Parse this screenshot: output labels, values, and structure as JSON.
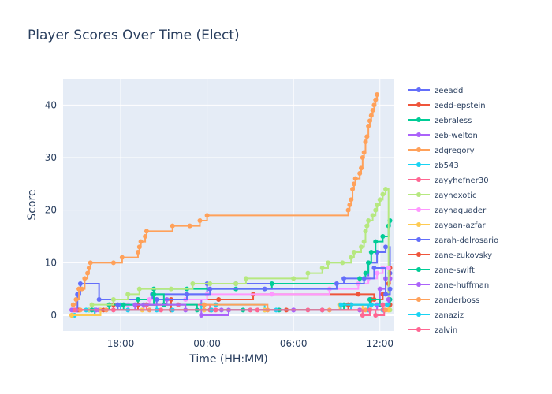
{
  "chart_data": {
    "type": "line",
    "title": "Player Scores Over Time (Elect)",
    "xlabel": "Time (HH:MM)",
    "ylabel": "Score",
    "x_tick_labels": [
      "18:00",
      "00:00",
      "06:00",
      "12:00"
    ],
    "x_tick_hours": [
      18,
      24,
      30,
      36
    ],
    "xlim_hours": [
      14.0,
      37.0
    ],
    "ylim": [
      -3,
      45
    ],
    "y_ticks": [
      0,
      10,
      20,
      30,
      40
    ],
    "step": "hv",
    "grid": true,
    "legend_position": "right",
    "series": [
      {
        "name": "zeeadd",
        "color": "#636efa",
        "points": [
          [
            14.7,
            1
          ],
          [
            15.0,
            4
          ],
          [
            15.2,
            6
          ],
          [
            16.5,
            3
          ],
          [
            19.2,
            3
          ],
          [
            20.2,
            4
          ],
          [
            24.0,
            6
          ],
          [
            26.0,
            6
          ],
          [
            33.5,
            7
          ],
          [
            35.2,
            10
          ],
          [
            35.8,
            12
          ],
          [
            36.4,
            13
          ],
          [
            36.7,
            8
          ]
        ]
      },
      {
        "name": "zedd-epstein",
        "color": "#EF553B",
        "points": [
          [
            14.6,
            0
          ],
          [
            16.2,
            1
          ],
          [
            17.5,
            2
          ],
          [
            19.8,
            2
          ],
          [
            21.5,
            3
          ],
          [
            24.8,
            3
          ],
          [
            27.2,
            4
          ],
          [
            34.5,
            4
          ],
          [
            35.6,
            3
          ],
          [
            36.2,
            4
          ],
          [
            36.6,
            6
          ],
          [
            36.7,
            9
          ]
        ]
      },
      {
        "name": "zebraless",
        "color": "#00cc96",
        "points": [
          [
            15.8,
            1
          ],
          [
            17.2,
            2
          ],
          [
            19.2,
            3
          ],
          [
            20.3,
            5
          ],
          [
            22.6,
            5
          ],
          [
            26.0,
            5
          ],
          [
            28.5,
            6
          ],
          [
            34.6,
            7
          ],
          [
            35.0,
            8
          ],
          [
            35.2,
            10
          ],
          [
            35.4,
            12
          ],
          [
            35.7,
            14
          ],
          [
            36.2,
            15
          ],
          [
            36.6,
            17
          ],
          [
            36.7,
            18
          ]
        ]
      },
      {
        "name": "zeb-welton",
        "color": "#ab63fa",
        "points": [
          [
            14.6,
            1
          ],
          [
            16.5,
            1
          ],
          [
            19.6,
            2
          ],
          [
            21.2,
            3
          ],
          [
            23.6,
            0
          ],
          [
            25.5,
            1
          ],
          [
            30.0,
            1
          ],
          [
            34.0,
            2
          ],
          [
            35.3,
            3
          ],
          [
            36.0,
            5
          ],
          [
            36.4,
            7
          ],
          [
            36.7,
            7
          ]
        ]
      },
      {
        "name": "zdgregory",
        "color": "#FFA15A",
        "points": [
          [
            14.7,
            2
          ],
          [
            14.9,
            3
          ],
          [
            15.1,
            5
          ],
          [
            15.3,
            5
          ],
          [
            15.5,
            7
          ],
          [
            15.7,
            8
          ],
          [
            15.8,
            9
          ],
          [
            15.9,
            10
          ],
          [
            17.5,
            10
          ],
          [
            18.1,
            11
          ],
          [
            19.2,
            12
          ],
          [
            19.3,
            13
          ],
          [
            19.4,
            14
          ],
          [
            19.7,
            15
          ],
          [
            19.8,
            16
          ],
          [
            21.6,
            17
          ],
          [
            22.8,
            17
          ],
          [
            23.5,
            18
          ],
          [
            24.0,
            19
          ],
          [
            33.8,
            20
          ],
          [
            33.9,
            21
          ],
          [
            34.0,
            22
          ],
          [
            34.1,
            24
          ],
          [
            34.2,
            25
          ],
          [
            34.3,
            26
          ],
          [
            34.6,
            27
          ],
          [
            34.7,
            28
          ],
          [
            34.8,
            30
          ],
          [
            34.9,
            31
          ],
          [
            35.0,
            33
          ],
          [
            35.1,
            34
          ],
          [
            35.2,
            36
          ],
          [
            35.3,
            37
          ],
          [
            35.4,
            38
          ],
          [
            35.5,
            39
          ],
          [
            35.6,
            40
          ],
          [
            35.7,
            41
          ],
          [
            35.8,
            42
          ]
        ]
      },
      {
        "name": "zb543",
        "color": "#19d3f3",
        "points": [
          [
            14.8,
            0
          ],
          [
            16.2,
            1
          ],
          [
            18.0,
            2
          ],
          [
            20.5,
            1
          ],
          [
            23.6,
            2
          ],
          [
            24.6,
            2
          ],
          [
            28.0,
            1
          ],
          [
            32.0,
            1
          ],
          [
            34.0,
            2
          ],
          [
            35.2,
            1
          ],
          [
            36.2,
            1
          ]
        ]
      },
      {
        "name": "zayyhefner30",
        "color": "#FF6692",
        "points": [
          [
            15.0,
            1
          ],
          [
            17.0,
            1
          ],
          [
            19.8,
            2
          ],
          [
            22.0,
            2
          ],
          [
            24.2,
            1
          ],
          [
            27.0,
            1
          ],
          [
            31.0,
            1
          ],
          [
            34.6,
            1
          ],
          [
            35.7,
            0
          ],
          [
            36.3,
            1
          ],
          [
            36.6,
            2
          ]
        ]
      },
      {
        "name": "zaynexotic",
        "color": "#B6E880",
        "points": [
          [
            15.8,
            1
          ],
          [
            16.0,
            2
          ],
          [
            17.5,
            3
          ],
          [
            18.5,
            4
          ],
          [
            19.3,
            5
          ],
          [
            21.5,
            5
          ],
          [
            23.0,
            6
          ],
          [
            24.2,
            6
          ],
          [
            26.0,
            6
          ],
          [
            26.7,
            7
          ],
          [
            30.0,
            7
          ],
          [
            31.0,
            8
          ],
          [
            32.0,
            9
          ],
          [
            32.4,
            10
          ],
          [
            33.4,
            10
          ],
          [
            34.0,
            11
          ],
          [
            34.2,
            12
          ],
          [
            34.7,
            13
          ],
          [
            34.9,
            14
          ],
          [
            35.0,
            16
          ],
          [
            35.1,
            17
          ],
          [
            35.2,
            18
          ],
          [
            35.5,
            19
          ],
          [
            35.7,
            20
          ],
          [
            35.8,
            21
          ],
          [
            36.0,
            22
          ],
          [
            36.2,
            23
          ],
          [
            36.4,
            24
          ],
          [
            36.6,
            3
          ],
          [
            36.7,
            1
          ]
        ]
      },
      {
        "name": "zaynaquader",
        "color": "#FF97FF",
        "points": [
          [
            16.0,
            1
          ],
          [
            18.5,
            2
          ],
          [
            20.0,
            3
          ],
          [
            22.5,
            3
          ],
          [
            24.0,
            4
          ],
          [
            28.5,
            4
          ],
          [
            32.5,
            5
          ],
          [
            34.5,
            6
          ],
          [
            35.2,
            7
          ],
          [
            35.8,
            8
          ],
          [
            36.2,
            9
          ],
          [
            36.6,
            9
          ]
        ]
      },
      {
        "name": "zayaan-azfar",
        "color": "#FECB52",
        "points": [
          [
            14.6,
            0
          ],
          [
            16.6,
            1
          ],
          [
            19.5,
            1
          ],
          [
            23.8,
            1
          ],
          [
            28.0,
            1
          ],
          [
            33.2,
            2
          ],
          [
            34.8,
            1
          ],
          [
            35.4,
            2
          ],
          [
            36.6,
            1
          ]
        ]
      },
      {
        "name": "zarah-delrosario",
        "color": "#636efa",
        "points": [
          [
            15.0,
            1
          ],
          [
            17.8,
            2
          ],
          [
            20.5,
            3
          ],
          [
            22.6,
            4
          ],
          [
            24.2,
            5
          ],
          [
            28.0,
            5
          ],
          [
            33.0,
            6
          ],
          [
            34.9,
            7
          ],
          [
            35.6,
            9
          ],
          [
            36.4,
            4
          ],
          [
            36.7,
            5
          ]
        ]
      },
      {
        "name": "zane-zukovsky",
        "color": "#EF553B",
        "points": [
          [
            15.1,
            1
          ],
          [
            16.8,
            1
          ],
          [
            19.2,
            2
          ],
          [
            21.5,
            1
          ],
          [
            24.3,
            1
          ],
          [
            29.5,
            1
          ],
          [
            33.8,
            2
          ],
          [
            35.4,
            3
          ],
          [
            36.0,
            2
          ],
          [
            36.7,
            2
          ]
        ]
      },
      {
        "name": "zane-swift",
        "color": "#00cc96",
        "points": [
          [
            16.0,
            1
          ],
          [
            18.2,
            2
          ],
          [
            20.3,
            4
          ],
          [
            21.0,
            2
          ],
          [
            23.3,
            1
          ],
          [
            26.5,
            1
          ],
          [
            29.0,
            1
          ],
          [
            33.5,
            2
          ],
          [
            35.3,
            3
          ],
          [
            36.0,
            2
          ],
          [
            36.7,
            3
          ]
        ]
      },
      {
        "name": "zane-huffman",
        "color": "#ab63fa",
        "points": [
          [
            14.9,
            1
          ],
          [
            16.3,
            1
          ],
          [
            19.0,
            2
          ],
          [
            22.5,
            1
          ],
          [
            25.0,
            1
          ],
          [
            30.0,
            1
          ],
          [
            34.6,
            1
          ],
          [
            35.8,
            2
          ],
          [
            36.6,
            3
          ]
        ]
      },
      {
        "name": "zanderboss",
        "color": "#FFA15A",
        "points": [
          [
            15.2,
            1
          ],
          [
            17.0,
            1
          ],
          [
            20.0,
            1
          ],
          [
            23.8,
            2
          ],
          [
            28.2,
            1
          ],
          [
            32.5,
            1
          ],
          [
            35.0,
            1
          ],
          [
            36.4,
            1
          ]
        ]
      },
      {
        "name": "zanaziz",
        "color": "#19d3f3",
        "points": [
          [
            15.6,
            1
          ],
          [
            18.5,
            1
          ],
          [
            21.6,
            1
          ],
          [
            24.3,
            1
          ],
          [
            28.8,
            1
          ],
          [
            33.3,
            2
          ],
          [
            35.4,
            2
          ],
          [
            36.5,
            2
          ]
        ]
      },
      {
        "name": "zalvin",
        "color": "#FF6692",
        "points": [
          [
            14.8,
            1
          ],
          [
            17.5,
            1
          ],
          [
            20.8,
            1
          ],
          [
            24.6,
            1
          ],
          [
            27.5,
            1
          ],
          [
            32.0,
            1
          ],
          [
            34.8,
            0
          ],
          [
            35.3,
            1
          ],
          [
            36.2,
            2
          ]
        ]
      }
    ]
  }
}
